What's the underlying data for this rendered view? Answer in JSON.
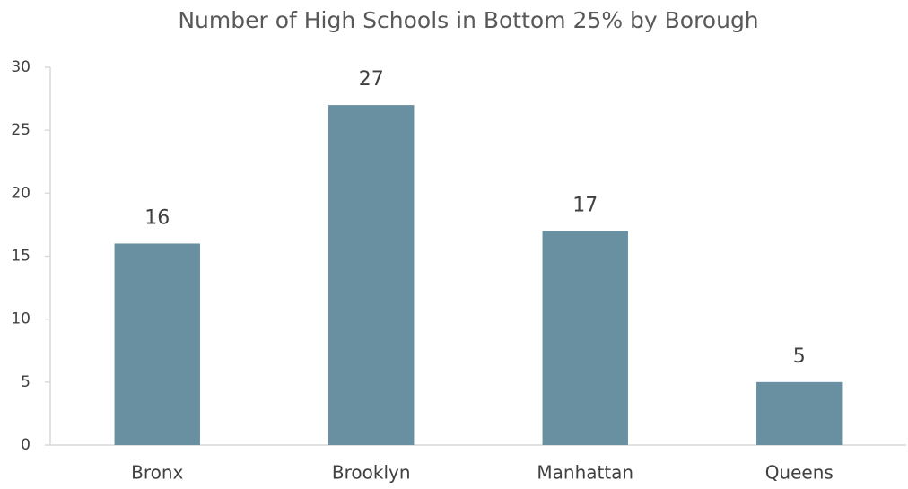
{
  "chart_data": {
    "type": "bar",
    "title": "Number of High Schools in Bottom 25% by Borough",
    "categories": [
      "Bronx",
      "Brooklyn",
      "Manhattan",
      "Queens"
    ],
    "values": [
      16,
      27,
      17,
      5
    ],
    "color": "#6890a0",
    "ylim": [
      0,
      30
    ],
    "yticks": [
      0,
      5,
      10,
      15,
      20,
      25,
      30
    ],
    "grid": false,
    "data_labels": true
  }
}
